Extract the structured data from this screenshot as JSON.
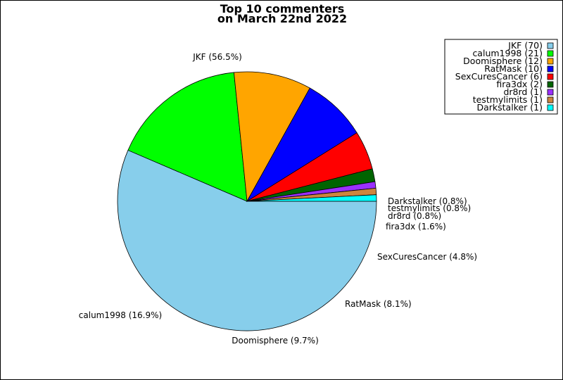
{
  "chart_data": {
    "type": "pie",
    "title": [
      "Top 10 commenters",
      "on March 22nd 2022"
    ],
    "legend_position": "top-right",
    "slices": [
      {
        "name": "JKF",
        "value": 70,
        "percent": "56.5%",
        "color": "#87CEEB"
      },
      {
        "name": "calum1998",
        "value": 21,
        "percent": "16.9%",
        "color": "#00FF00"
      },
      {
        "name": "Doomisphere",
        "value": 12,
        "percent": "9.7%",
        "color": "#FFA500"
      },
      {
        "name": "RatMask",
        "value": 10,
        "percent": "8.1%",
        "color": "#0000FF"
      },
      {
        "name": "SexCuresCancer",
        "value": 6,
        "percent": "4.8%",
        "color": "#FF0000"
      },
      {
        "name": "fira3dx",
        "value": 2,
        "percent": "1.6%",
        "color": "#006400"
      },
      {
        "name": "dr8rd",
        "value": 1,
        "percent": "0.8%",
        "color": "#9B30FF"
      },
      {
        "name": "testmylimits",
        "value": 1,
        "percent": "0.8%",
        "color": "#CD853F"
      },
      {
        "name": "Darkstalker",
        "value": 1,
        "percent": "0.8%",
        "color": "#00FFFF"
      }
    ]
  }
}
